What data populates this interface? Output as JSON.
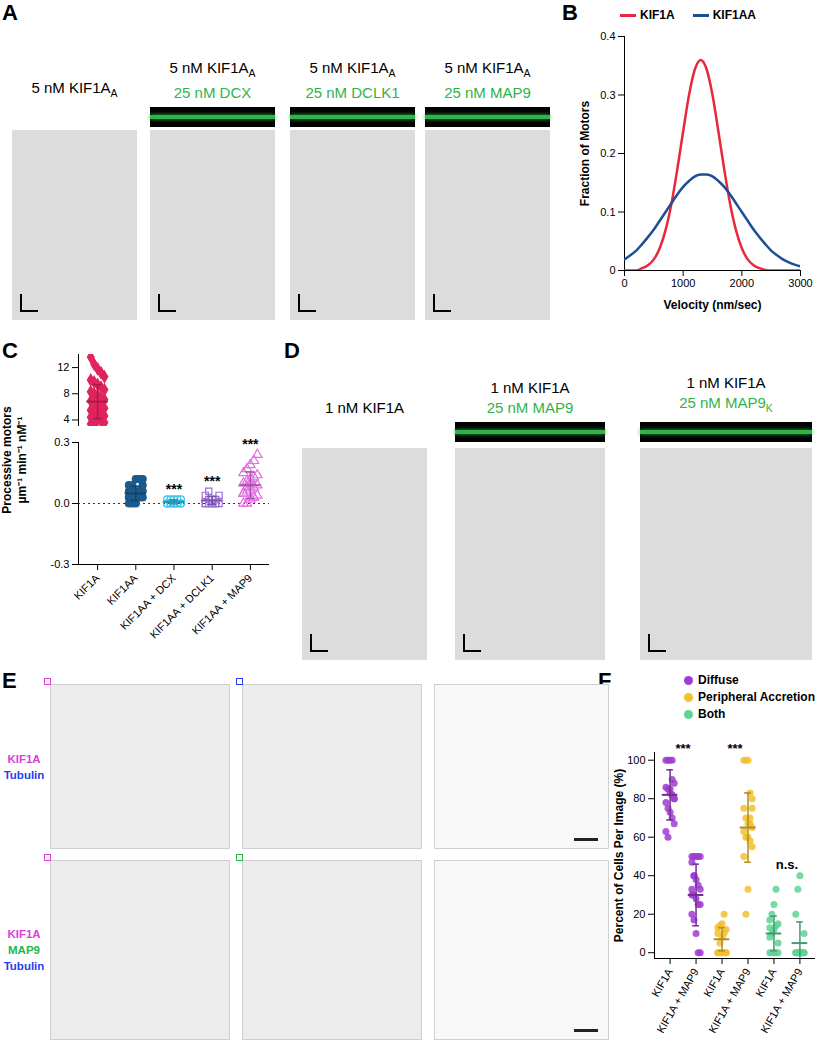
{
  "figure": {
    "panels": [
      {
        "label": "A",
        "kymographs": [
          {
            "lines": [
              {
                "color": "#000000",
                "segments": [
                  {
                    "text": "5 nM KIF1A"
                  },
                  {
                    "text": "A",
                    "sub": true
                  }
                ]
              }
            ]
          },
          {
            "lines": [
              {
                "color": "#000000",
                "segments": [
                  {
                    "text": "5 nM KIF1A"
                  },
                  {
                    "text": "A",
                    "sub": true
                  }
                ]
              },
              {
                "color": "#2fb34a",
                "segments": [
                  {
                    "text": "25 nM DCX"
                  }
                ]
              }
            ]
          },
          {
            "lines": [
              {
                "color": "#000000",
                "segments": [
                  {
                    "text": "5 nM KIF1A"
                  },
                  {
                    "text": "A",
                    "sub": true
                  }
                ]
              },
              {
                "color": "#2fb34a",
                "segments": [
                  {
                    "text": "25 nM DCLK1"
                  }
                ]
              }
            ]
          },
          {
            "lines": [
              {
                "color": "#000000",
                "segments": [
                  {
                    "text": "5 nM KIF1A"
                  },
                  {
                    "text": "A",
                    "sub": true
                  }
                ]
              },
              {
                "color": "#2fb34a",
                "segments": [
                  {
                    "text": "25 nM MAP9"
                  }
                ]
              }
            ]
          }
        ]
      },
      {
        "label": "B"
      },
      {
        "label": "C"
      },
      {
        "label": "D",
        "kymographs": [
          {
            "lines": [
              {
                "color": "#000000",
                "segments": [
                  {
                    "text": "1 nM KIF1A"
                  }
                ]
              }
            ]
          },
          {
            "lines": [
              {
                "color": "#000000",
                "segments": [
                  {
                    "text": "1 nM KIF1A"
                  }
                ]
              },
              {
                "color": "#2fb34a",
                "segments": [
                  {
                    "text": "25 nM MAP9"
                  }
                ]
              }
            ]
          },
          {
            "lines": [
              {
                "color": "#000000",
                "segments": [
                  {
                    "text": "1 nM KIF1A"
                  }
                ]
              },
              {
                "color": "#2fb34a",
                "segments": [
                  {
                    "text": "25 nM MAP9"
                  },
                  {
                    "text": "K",
                    "sub": true
                  }
                ]
              }
            ]
          }
        ]
      },
      {
        "label": "E",
        "rows": [
          {
            "channels": [
              {
                "text": "KIF1A",
                "color": "#e03ce0"
              },
              {
                "text": "Tubulin",
                "color": "#2b3cf0"
              }
            ]
          },
          {
            "channels": [
              {
                "text": "KIF1A",
                "color": "#e03ce0"
              },
              {
                "text": "MAP9",
                "color": "#22b84e"
              },
              {
                "text": "Tubulin",
                "color": "#2b3cf0"
              }
            ]
          }
        ]
      },
      {
        "label": "F"
      }
    ]
  },
  "chart_data": [
    {
      "type": "line",
      "xlabel": "Velocity (nm/sec)",
      "ylabel": "Fraction of Motors",
      "x": [
        0,
        100,
        200,
        300,
        400,
        500,
        600,
        700,
        800,
        900,
        1000,
        1100,
        1200,
        1300,
        1400,
        1500,
        1600,
        1700,
        1800,
        1900,
        2000,
        2100,
        2200,
        2300,
        2400,
        2500,
        2600,
        2700,
        2800,
        2900,
        3000
      ],
      "series": [
        {
          "name": "KIF1A",
          "color": "#e8283c",
          "values": [
            0,
            0,
            0,
            0.004,
            0.009,
            0.019,
            0.038,
            0.069,
            0.114,
            0.173,
            0.238,
            0.3,
            0.344,
            0.36,
            0.344,
            0.3,
            0.238,
            0.173,
            0.114,
            0.069,
            0.038,
            0.019,
            0.009,
            0.004,
            0.001,
            0,
            0,
            0,
            0,
            0,
            0
          ]
        },
        {
          "name": "KIF1AA",
          "color": "#1f4e96",
          "values": [
            0.019,
            0.026,
            0.034,
            0.045,
            0.057,
            0.07,
            0.085,
            0.1,
            0.115,
            0.13,
            0.143,
            0.153,
            0.161,
            0.164,
            0.164,
            0.161,
            0.153,
            0.143,
            0.13,
            0.115,
            0.1,
            0.085,
            0.07,
            0.057,
            0.045,
            0.034,
            0.026,
            0.019,
            0.014,
            0.01,
            0.007
          ]
        }
      ],
      "xlim": [
        0,
        3000
      ],
      "xticks": [
        0,
        1000,
        2000,
        3000
      ],
      "ylim": [
        0,
        0.4
      ],
      "yticks": [
        0,
        0.1,
        0.2,
        0.3,
        0.4
      ],
      "legend": "top"
    },
    {
      "type": "scatter",
      "ylabel": [
        "Processive motors",
        "µm⁻¹ min⁻¹ nM⁻¹"
      ],
      "categories": [
        "KIF1A",
        "KIF1AA",
        "KIF1AA + DCX",
        "KIF1AA + DCLK1",
        "KIF1AA + MAP9"
      ],
      "colors": [
        "#e0245e",
        "#1b5a8c",
        "#35c4e8",
        "#9b6fd6",
        "#e46ee4"
      ],
      "markers": [
        "diamond",
        "circle",
        "circle-open",
        "square-open",
        "triangle-open"
      ],
      "points": [
        [
          13.6,
          12.5,
          11.8,
          11.2,
          10.6,
          10.1,
          9.8,
          9.4,
          9.0,
          8.6,
          8.3,
          8.0,
          7.7,
          7.4,
          7.1,
          6.9,
          6.6,
          6.3,
          6.0,
          5.8,
          5.5,
          5.2,
          5.0,
          4.8,
          4.6,
          4.4,
          4.2,
          4.0,
          3.8,
          3.6,
          3.4,
          3.2
        ],
        [
          0,
          0,
          0,
          0.03,
          0.03,
          0.03,
          0.03,
          0.03,
          0.06,
          0.06,
          0.06,
          0.06,
          0.06,
          0.06,
          0.09,
          0.09,
          0.09,
          0.12,
          0.12,
          0.12,
          0.03,
          0.06
        ],
        [
          0,
          0,
          0,
          0,
          0,
          0,
          0,
          0,
          0.02,
          0.02,
          0.02,
          0.02,
          0.02,
          0,
          0
        ],
        [
          0,
          0,
          0,
          0,
          0,
          0,
          0.02,
          0.02,
          0.02,
          0.04,
          0.04,
          0.06,
          0,
          0
        ],
        [
          0,
          0,
          0.02,
          0.03,
          0.04,
          0.05,
          0.06,
          0.07,
          0.08,
          0.09,
          0.1,
          0.11,
          0.12,
          0.13,
          0.14,
          0.15,
          0.17,
          0.19,
          0.21,
          0.24,
          0.05,
          0.08,
          0.1,
          0.03
        ]
      ],
      "mean": [
        6.8,
        0.05,
        0.008,
        0.015,
        0.09
      ],
      "sd": [
        2.6,
        0.035,
        0.01,
        0.02,
        0.065
      ],
      "annotations": [
        null,
        null,
        "***",
        "***",
        "***"
      ],
      "ylim": [
        3,
        14
      ],
      "yticks": [
        4,
        8,
        12
      ],
      "ylim_lower": [
        -0.3,
        0.3
      ],
      "yticks_lower": [
        -0.3,
        {
          "value": 0,
          "label": "0.0"
        },
        0.3
      ],
      "reference_line": 0
    },
    {
      "type": "scatter",
      "ylabel": "Percent of Cells Per Image (%)",
      "categories": [
        "KIF1A",
        "KIF1A + MAP9",
        "KIF1A",
        "KIF1A + MAP9",
        "KIF1A",
        "KIF1A + MAP9"
      ],
      "series": [
        {
          "name": "Diffuse",
          "color": "#a03cd0",
          "points": [
            [
              100,
              100,
              100,
              100,
              88,
              86,
              85,
              83,
              82,
              80,
              78,
              75,
              73,
              70,
              67,
              63,
              60,
              85,
              90,
              80
            ],
            [
              50,
              50,
              50,
              50,
              50,
              47,
              40,
              38,
              35,
              33,
              30,
              30,
              28,
              25,
              25,
              20,
              17,
              10,
              0,
              0,
              33,
              40
            ]
          ],
          "mean": [
            82,
            30
          ],
          "sd": [
            13,
            16
          ]
        },
        {
          "name": "Peripheral Accretion",
          "color": "#f2c12e",
          "points": [
            [
              0,
              0,
              0,
              0,
              0,
              0,
              5,
              8,
              10,
              12,
              13,
              14,
              15,
              20,
              0,
              10
            ],
            [
              100,
              100,
              100,
              83,
              80,
              75,
              70,
              67,
              67,
              65,
              63,
              60,
              60,
              58,
              55,
              50,
              20,
              33,
              70,
              75
            ]
          ],
          "mean": [
            7,
            65
          ],
          "sd": [
            6,
            18
          ]
        },
        {
          "name": "Both",
          "color": "#5fd394",
          "points": [
            [
              0,
              0,
              0,
              0,
              5,
              8,
              10,
              12,
              14,
              15,
              17,
              20,
              25,
              33,
              0,
              13
            ],
            [
              0,
              0,
              0,
              0,
              0,
              0,
              0,
              0,
              0,
              10,
              20,
              33,
              40,
              0,
              0
            ]
          ],
          "mean": [
            10,
            5
          ],
          "sd": [
            9,
            11
          ]
        }
      ],
      "annotations": [
        "***",
        "***",
        "n.s."
      ],
      "ylim": [
        -3,
        104
      ],
      "yticks": [
        0,
        20,
        40,
        60,
        80,
        100
      ],
      "legend": "top-right"
    }
  ]
}
